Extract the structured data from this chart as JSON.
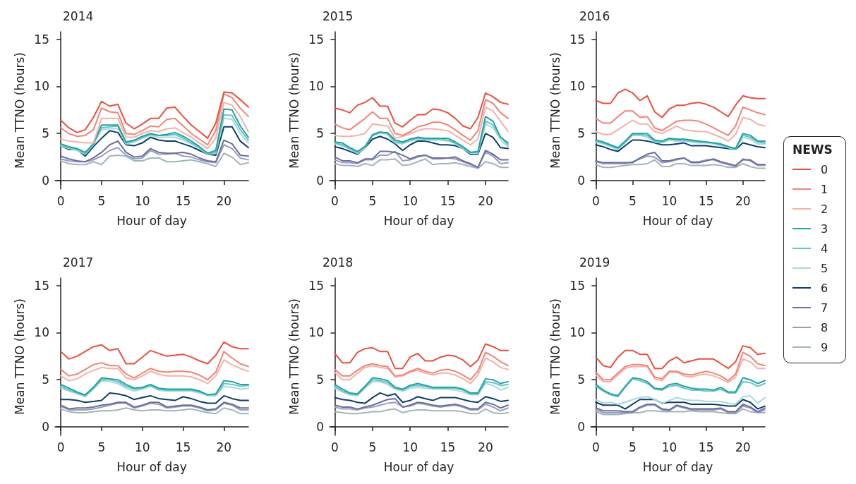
{
  "chart_data": [
    {
      "type": "line",
      "title": "2014",
      "xlabel": "Hour of day",
      "ylabel": "Mean TTNO (hours)",
      "x": [
        0,
        1,
        2,
        3,
        4,
        5,
        6,
        7,
        8,
        9,
        10,
        11,
        12,
        13,
        14,
        15,
        16,
        17,
        18,
        19,
        20,
        21,
        22,
        23
      ],
      "xlim": [
        -0.7,
        23
      ],
      "xticks": [
        0,
        5,
        10,
        15,
        20
      ],
      "ylim": [
        -0.9,
        15.8
      ],
      "yticks": [
        0,
        5,
        10,
        15
      ],
      "grid": false,
      "legend": false,
      "series": [
        {
          "color": "#e8503e",
          "values": [
            6.4,
            5.6,
            5.1,
            5.4,
            6.7,
            8.4,
            7.9,
            8.1,
            6.1,
            5.5,
            6.0,
            6.6,
            6.6,
            7.7,
            7.8,
            6.8,
            5.9,
            5.2,
            4.5,
            6.1,
            9.4,
            9.3,
            8.6,
            7.8
          ]
        },
        {
          "color": "#f08478",
          "values": [
            5.6,
            5.0,
            4.7,
            4.8,
            5.4,
            7.7,
            7.3,
            7.2,
            5.0,
            4.9,
            5.3,
            5.8,
            5.7,
            6.5,
            6.6,
            5.8,
            5.0,
            4.4,
            3.8,
            5.3,
            9.2,
            8.8,
            7.7,
            6.8
          ]
        },
        {
          "color": "#f5b0a8",
          "values": [
            4.4,
            4.2,
            4.1,
            4.0,
            4.0,
            6.6,
            6.6,
            6.6,
            4.6,
            4.6,
            5.0,
            5.3,
            5.2,
            5.5,
            5.6,
            5.1,
            4.6,
            4.0,
            3.4,
            4.5,
            8.3,
            8.0,
            6.8,
            5.2
          ]
        },
        {
          "color": "#1ea5a5",
          "values": [
            3.9,
            3.6,
            3.4,
            3.0,
            3.9,
            5.9,
            5.9,
            5.9,
            4.1,
            4.3,
            4.7,
            5.0,
            4.8,
            4.9,
            5.1,
            4.7,
            4.2,
            3.6,
            2.9,
            3.2,
            7.6,
            7.5,
            5.8,
            4.6
          ]
        },
        {
          "color": "#6cc3c6",
          "values": [
            3.8,
            3.5,
            3.3,
            2.9,
            3.9,
            5.6,
            5.7,
            5.8,
            4.0,
            4.2,
            4.6,
            4.9,
            4.8,
            4.8,
            4.9,
            4.5,
            4.0,
            3.5,
            2.9,
            3.0,
            7.0,
            6.9,
            5.4,
            4.3
          ]
        },
        {
          "color": "#a9d9da",
          "values": [
            3.7,
            3.4,
            3.2,
            2.8,
            3.8,
            5.4,
            5.5,
            5.5,
            3.9,
            4.1,
            4.5,
            4.8,
            4.6,
            4.6,
            4.6,
            4.3,
            3.9,
            3.4,
            2.8,
            2.9,
            6.6,
            6.5,
            5.0,
            4.0
          ]
        },
        {
          "color": "#0f3d6e",
          "values": [
            3.7,
            3.3,
            3.3,
            2.6,
            3.6,
            4.5,
            5.3,
            5.1,
            3.8,
            3.7,
            4.0,
            4.6,
            4.3,
            4.2,
            4.2,
            3.9,
            3.6,
            3.2,
            2.8,
            2.7,
            5.7,
            5.7,
            4.2,
            3.5
          ]
        },
        {
          "color": "#6a6f9e",
          "values": [
            2.6,
            2.3,
            2.1,
            2.0,
            2.4,
            3.0,
            3.8,
            4.2,
            3.0,
            2.5,
            2.6,
            3.4,
            3.0,
            2.9,
            2.9,
            3.0,
            2.8,
            2.4,
            2.1,
            2.0,
            4.3,
            3.9,
            2.7,
            2.6
          ]
        },
        {
          "color": "#9a9cc4",
          "values": [
            2.3,
            2.1,
            2.0,
            2.0,
            2.2,
            2.6,
            3.2,
            3.5,
            2.7,
            2.3,
            2.4,
            3.2,
            2.8,
            2.8,
            2.9,
            2.6,
            2.5,
            2.2,
            2.0,
            1.9,
            3.8,
            3.4,
            2.4,
            2.2
          ]
        },
        {
          "color": "#9fb6b8",
          "values": [
            2.1,
            1.8,
            1.7,
            1.7,
            2.0,
            1.7,
            2.6,
            2.7,
            2.6,
            2.1,
            2.1,
            2.4,
            2.4,
            2.0,
            2.0,
            2.1,
            2.2,
            2.0,
            1.8,
            1.5,
            2.9,
            2.5,
            1.7,
            1.9
          ]
        }
      ]
    },
    {
      "type": "line",
      "title": "2015",
      "xlabel": "Hour of day",
      "ylabel": "Mean TTNO (hours)",
      "x": [
        0,
        1,
        2,
        3,
        4,
        5,
        6,
        7,
        8,
        9,
        10,
        11,
        12,
        13,
        14,
        15,
        16,
        17,
        18,
        19,
        20,
        21,
        22,
        23
      ],
      "xlim": [
        -0.7,
        23
      ],
      "xticks": [
        0,
        5,
        10,
        15,
        20
      ],
      "ylim": [
        -0.9,
        15.8
      ],
      "yticks": [
        0,
        5,
        10,
        15
      ],
      "grid": false,
      "legend": false,
      "series": [
        {
          "color": "#e8503e",
          "values": [
            7.7,
            7.5,
            7.2,
            8.0,
            8.3,
            8.8,
            7.9,
            7.9,
            6.1,
            5.7,
            6.4,
            7.0,
            7.0,
            7.6,
            7.5,
            7.2,
            6.6,
            5.8,
            5.5,
            6.7,
            9.3,
            8.9,
            8.3,
            8.1
          ]
        },
        {
          "color": "#f08478",
          "values": [
            6.0,
            5.6,
            5.4,
            6.0,
            6.6,
            7.3,
            6.6,
            6.6,
            5.0,
            4.8,
            5.2,
            5.7,
            5.9,
            6.2,
            6.2,
            5.9,
            5.4,
            4.8,
            4.3,
            5.3,
            8.6,
            8.2,
            7.2,
            6.6
          ]
        },
        {
          "color": "#f5b0a8",
          "values": [
            4.8,
            4.7,
            4.7,
            4.8,
            5.0,
            6.0,
            5.9,
            5.8,
            4.5,
            4.7,
            5.0,
            5.3,
            5.5,
            5.5,
            5.4,
            5.3,
            4.8,
            4.3,
            3.8,
            4.4,
            7.8,
            7.4,
            6.3,
            5.2
          ]
        },
        {
          "color": "#1ea5a5",
          "values": [
            4.1,
            4.0,
            3.5,
            3.1,
            3.6,
            4.8,
            5.1,
            5.1,
            4.3,
            4.1,
            4.4,
            4.6,
            4.5,
            4.5,
            4.5,
            4.5,
            4.1,
            3.6,
            3.0,
            3.1,
            6.8,
            6.3,
            4.6,
            4.0
          ]
        },
        {
          "color": "#6cc3c6",
          "values": [
            4.0,
            3.8,
            3.4,
            3.0,
            3.6,
            4.9,
            5.2,
            5.0,
            4.1,
            4.0,
            4.3,
            4.5,
            4.4,
            4.4,
            4.4,
            4.3,
            4.0,
            3.5,
            3.0,
            3.0,
            6.3,
            5.9,
            4.6,
            3.8
          ]
        },
        {
          "color": "#a9d9da",
          "values": [
            3.9,
            3.7,
            3.3,
            2.9,
            3.5,
            4.8,
            5.1,
            4.9,
            4.0,
            3.9,
            4.2,
            4.4,
            4.3,
            4.3,
            4.3,
            4.2,
            3.9,
            3.4,
            2.9,
            2.9,
            6.0,
            5.6,
            4.3,
            3.6
          ]
        },
        {
          "color": "#0f3d6e",
          "values": [
            3.6,
            3.4,
            3.1,
            2.8,
            3.5,
            4.4,
            4.7,
            4.4,
            3.9,
            3.2,
            3.8,
            4.2,
            4.2,
            4.0,
            3.8,
            3.8,
            3.7,
            3.4,
            2.8,
            2.8,
            5.0,
            4.6,
            3.5,
            3.4
          ]
        },
        {
          "color": "#6a6f9e",
          "values": [
            2.5,
            2.1,
            2.1,
            1.9,
            2.3,
            2.3,
            3.1,
            3.1,
            3.0,
            2.7,
            2.3,
            2.6,
            2.7,
            2.4,
            2.4,
            2.4,
            2.5,
            2.1,
            1.8,
            1.4,
            3.2,
            2.8,
            2.2,
            2.2
          ]
        },
        {
          "color": "#9a9cc4",
          "values": [
            2.2,
            1.9,
            1.9,
            1.8,
            2.2,
            2.2,
            2.7,
            2.7,
            3.1,
            2.1,
            2.2,
            2.5,
            2.7,
            2.3,
            2.3,
            2.4,
            2.3,
            2.0,
            1.7,
            1.4,
            3.0,
            2.6,
            1.8,
            1.9
          ]
        },
        {
          "color": "#9fb6b8",
          "values": [
            1.8,
            1.6,
            1.6,
            1.5,
            1.8,
            1.6,
            2.2,
            2.2,
            2.3,
            1.6,
            1.7,
            2.0,
            2.3,
            1.7,
            1.8,
            1.8,
            1.9,
            1.7,
            1.5,
            1.3,
            2.0,
            1.8,
            1.4,
            1.4
          ]
        }
      ]
    },
    {
      "type": "line",
      "title": "2016",
      "xlabel": "Hour of day",
      "ylabel": "Mean TTNO (hours)",
      "x": [
        0,
        1,
        2,
        3,
        4,
        5,
        6,
        7,
        8,
        9,
        10,
        11,
        12,
        13,
        14,
        15,
        16,
        17,
        18,
        19,
        20,
        21,
        22,
        23
      ],
      "xlim": [
        -0.7,
        23
      ],
      "xticks": [
        0,
        5,
        10,
        15,
        20
      ],
      "ylim": [
        -0.9,
        15.8
      ],
      "yticks": [
        0,
        5,
        10,
        15
      ],
      "grid": false,
      "legend": "right",
      "legend_title": "NEWS",
      "series": [
        {
          "name": "0",
          "color": "#e8503e",
          "values": [
            8.5,
            8.2,
            8.2,
            9.3,
            9.7,
            9.3,
            8.5,
            9.0,
            7.3,
            6.7,
            7.6,
            8.0,
            8.0,
            8.2,
            8.3,
            8.1,
            7.8,
            7.3,
            6.8,
            8.0,
            9.0,
            8.8,
            8.7,
            8.7
          ]
        },
        {
          "name": "1",
          "color": "#f08478",
          "values": [
            6.6,
            6.1,
            6.1,
            6.8,
            7.4,
            7.4,
            6.7,
            6.8,
            5.6,
            5.3,
            5.8,
            6.3,
            6.4,
            6.4,
            6.3,
            6.0,
            5.6,
            5.2,
            4.8,
            5.8,
            7.8,
            7.5,
            7.2,
            7.0
          ]
        },
        {
          "name": "2",
          "color": "#f5b0a8",
          "values": [
            5.2,
            4.9,
            4.9,
            5.4,
            5.9,
            6.4,
            6.0,
            6.0,
            5.2,
            5.0,
            5.4,
            5.8,
            5.4,
            5.3,
            5.2,
            5.2,
            4.9,
            4.6,
            4.2,
            4.9,
            6.7,
            6.5,
            6.0,
            5.8
          ]
        },
        {
          "name": "3",
          "color": "#1ea5a5",
          "values": [
            4.3,
            4.1,
            3.8,
            3.5,
            4.2,
            5.0,
            5.0,
            5.0,
            4.3,
            4.2,
            4.5,
            4.4,
            4.4,
            4.3,
            4.2,
            4.1,
            4.0,
            3.9,
            3.6,
            3.4,
            5.0,
            4.8,
            4.2,
            4.2
          ]
        },
        {
          "name": "4",
          "color": "#6cc3c6",
          "values": [
            4.2,
            4.0,
            3.7,
            3.4,
            4.1,
            4.9,
            4.9,
            4.8,
            4.2,
            4.1,
            4.4,
            4.3,
            4.3,
            4.2,
            4.1,
            4.1,
            4.0,
            3.8,
            3.6,
            3.4,
            4.8,
            4.6,
            4.1,
            4.0
          ]
        },
        {
          "name": "5",
          "color": "#a9d9da",
          "values": [
            4.1,
            3.9,
            3.6,
            3.3,
            4.0,
            4.8,
            4.8,
            4.6,
            4.1,
            4.0,
            4.3,
            4.2,
            4.2,
            4.1,
            4.0,
            4.0,
            3.9,
            3.7,
            3.5,
            3.3,
            4.6,
            4.4,
            3.9,
            3.9
          ]
        },
        {
          "name": "6",
          "color": "#0f3d6e",
          "values": [
            3.8,
            3.6,
            3.3,
            3.1,
            3.7,
            4.3,
            4.3,
            4.2,
            4.0,
            3.8,
            3.8,
            3.9,
            4.0,
            3.7,
            3.7,
            3.7,
            3.6,
            3.5,
            3.4,
            3.3,
            4.0,
            3.8,
            3.6,
            3.5
          ]
        },
        {
          "name": "7",
          "color": "#6a6f9e",
          "values": [
            2.1,
            1.9,
            1.9,
            1.9,
            1.9,
            1.9,
            2.4,
            2.8,
            3.0,
            2.1,
            2.1,
            2.3,
            2.4,
            1.9,
            1.9,
            2.1,
            2.3,
            2.0,
            1.8,
            1.6,
            2.2,
            2.2,
            1.7,
            1.7
          ]
        },
        {
          "name": "8",
          "color": "#9a9cc4",
          "values": [
            2.0,
            1.8,
            1.8,
            1.8,
            1.8,
            2.0,
            2.3,
            2.6,
            2.5,
            1.9,
            2.0,
            2.2,
            2.4,
            2.0,
            2.0,
            2.2,
            2.2,
            1.9,
            1.7,
            1.5,
            2.3,
            2.1,
            1.6,
            1.6
          ]
        },
        {
          "name": "9",
          "color": "#9fb6b8",
          "values": [
            1.7,
            1.4,
            1.4,
            1.5,
            1.6,
            1.7,
            1.7,
            1.8,
            2.2,
            1.5,
            1.5,
            1.8,
            1.8,
            1.6,
            1.6,
            1.6,
            1.7,
            1.6,
            1.4,
            1.4,
            1.8,
            1.5,
            1.3,
            1.3
          ]
        }
      ]
    },
    {
      "type": "line",
      "title": "2017",
      "xlabel": "Hour of day",
      "ylabel": "Mean TTNO (hours)",
      "x": [
        0,
        1,
        2,
        3,
        4,
        5,
        6,
        7,
        8,
        9,
        10,
        11,
        12,
        13,
        14,
        15,
        16,
        17,
        18,
        19,
        20,
        21,
        22,
        23
      ],
      "xlim": [
        -0.7,
        23
      ],
      "xticks": [
        0,
        5,
        10,
        15,
        20
      ],
      "ylim": [
        -0.9,
        15.8
      ],
      "yticks": [
        0,
        5,
        10,
        15
      ],
      "grid": false,
      "legend": false,
      "series": [
        {
          "color": "#e8503e",
          "values": [
            8.0,
            7.2,
            7.5,
            8.0,
            8.5,
            8.7,
            8.1,
            8.3,
            6.7,
            6.7,
            7.4,
            8.1,
            7.8,
            7.5,
            7.6,
            7.7,
            7.4,
            7.0,
            6.7,
            7.6,
            9.0,
            8.5,
            8.3,
            8.3
          ]
        },
        {
          "color": "#f08478",
          "values": [
            6.1,
            5.4,
            5.6,
            6.1,
            6.6,
            6.8,
            6.5,
            6.5,
            5.6,
            5.2,
            5.7,
            6.2,
            5.9,
            5.8,
            5.9,
            5.9,
            5.8,
            5.5,
            5.0,
            5.8,
            8.0,
            7.3,
            6.7,
            6.4
          ]
        },
        {
          "color": "#f5b0a8",
          "values": [
            5.4,
            4.9,
            5.1,
            5.6,
            6.0,
            6.3,
            6.2,
            6.2,
            5.2,
            5.0,
            5.4,
            5.9,
            5.6,
            5.4,
            5.4,
            5.4,
            5.3,
            5.0,
            4.6,
            5.4,
            7.1,
            6.6,
            6.2,
            5.9
          ]
        },
        {
          "color": "#1ea5a5",
          "values": [
            4.5,
            4.1,
            3.7,
            3.4,
            4.2,
            5.2,
            5.1,
            5.0,
            4.5,
            4.1,
            4.2,
            4.5,
            4.1,
            4.0,
            4.0,
            4.0,
            4.0,
            3.8,
            3.4,
            3.5,
            4.9,
            4.8,
            4.5,
            4.5
          ]
        },
        {
          "color": "#6cc3c6",
          "values": [
            4.3,
            3.9,
            3.6,
            3.3,
            4.1,
            5.0,
            5.0,
            4.8,
            4.3,
            4.0,
            4.1,
            4.4,
            4.0,
            3.9,
            3.9,
            3.9,
            3.9,
            3.7,
            3.4,
            3.4,
            4.6,
            4.5,
            4.3,
            4.4
          ]
        },
        {
          "color": "#a9d9da",
          "values": [
            4.1,
            3.8,
            3.5,
            3.2,
            4.0,
            4.9,
            4.8,
            4.6,
            4.1,
            3.8,
            4.0,
            4.3,
            3.9,
            3.8,
            3.8,
            3.8,
            3.8,
            3.6,
            3.3,
            3.3,
            4.3,
            4.2,
            4.0,
            4.1
          ]
        },
        {
          "color": "#0f3d6e",
          "values": [
            2.9,
            2.9,
            2.8,
            2.6,
            2.7,
            2.8,
            3.6,
            3.5,
            3.3,
            2.9,
            3.1,
            3.3,
            3.0,
            2.9,
            2.8,
            3.2,
            3.0,
            2.7,
            2.5,
            2.5,
            3.3,
            3.0,
            2.8,
            2.8
          ]
        },
        {
          "color": "#6a6f9e",
          "values": [
            2.3,
            1.9,
            2.0,
            2.0,
            2.1,
            2.3,
            2.4,
            2.6,
            2.6,
            2.1,
            2.3,
            2.6,
            2.6,
            2.1,
            2.2,
            2.3,
            2.3,
            2.1,
            1.8,
            1.9,
            2.6,
            2.4,
            2.0,
            2.0
          ]
        },
        {
          "color": "#9a9cc4",
          "values": [
            2.2,
            1.8,
            1.8,
            1.8,
            1.9,
            2.1,
            2.3,
            2.5,
            2.5,
            2.0,
            2.2,
            2.5,
            2.4,
            2.0,
            2.1,
            2.2,
            2.2,
            2.0,
            1.7,
            1.8,
            2.5,
            2.3,
            1.8,
            1.8
          ]
        },
        {
          "color": "#9fb6b8",
          "values": [
            1.9,
            1.6,
            1.5,
            1.5,
            1.6,
            1.7,
            1.7,
            1.8,
            2.0,
            1.8,
            1.7,
            1.8,
            1.8,
            1.7,
            1.7,
            1.8,
            1.9,
            1.7,
            1.5,
            1.4,
            2.0,
            1.8,
            1.4,
            1.4
          ]
        }
      ]
    },
    {
      "type": "line",
      "title": "2018",
      "xlabel": "Hour of day",
      "ylabel": "Mean TTNO (hours)",
      "x": [
        0,
        1,
        2,
        3,
        4,
        5,
        6,
        7,
        8,
        9,
        10,
        11,
        12,
        13,
        14,
        15,
        16,
        17,
        18,
        19,
        20,
        21,
        22,
        23
      ],
      "xlim": [
        -0.7,
        23
      ],
      "xticks": [
        0,
        5,
        10,
        15,
        20
      ],
      "ylim": [
        -0.9,
        15.8
      ],
      "yticks": [
        0,
        5,
        10,
        15
      ],
      "grid": false,
      "legend": false,
      "series": [
        {
          "color": "#e8503e",
          "values": [
            7.8,
            6.8,
            6.8,
            7.9,
            8.3,
            8.4,
            8.0,
            8.0,
            6.2,
            6.2,
            7.4,
            7.8,
            7.0,
            7.0,
            7.4,
            7.6,
            7.5,
            7.1,
            6.4,
            7.1,
            8.8,
            8.5,
            8.1,
            8.1
          ]
        },
        {
          "color": "#f08478",
          "values": [
            6.1,
            5.4,
            5.4,
            6.0,
            6.5,
            6.7,
            6.5,
            6.4,
            5.4,
            5.5,
            5.9,
            6.2,
            5.9,
            5.7,
            6.0,
            6.1,
            5.9,
            5.5,
            5.0,
            5.9,
            7.9,
            7.5,
            6.9,
            6.5
          ]
        },
        {
          "color": "#f5b0a8",
          "values": [
            5.8,
            5.0,
            5.0,
            5.7,
            6.3,
            6.5,
            6.3,
            6.2,
            5.3,
            5.4,
            5.8,
            6.0,
            5.7,
            5.5,
            5.7,
            5.7,
            5.5,
            5.1,
            4.6,
            5.5,
            7.3,
            6.9,
            6.3,
            6.1
          ]
        },
        {
          "color": "#1ea5a5",
          "values": [
            4.5,
            4.0,
            3.6,
            3.5,
            4.3,
            5.2,
            5.1,
            4.9,
            4.2,
            4.0,
            4.4,
            4.6,
            4.4,
            4.2,
            4.2,
            4.2,
            4.2,
            4.0,
            3.6,
            3.6,
            5.1,
            5.0,
            4.6,
            4.8
          ]
        },
        {
          "color": "#6cc3c6",
          "values": [
            4.3,
            3.8,
            3.5,
            3.4,
            4.2,
            5.0,
            4.9,
            4.7,
            4.1,
            3.9,
            4.3,
            4.4,
            4.3,
            4.1,
            4.1,
            4.1,
            4.1,
            3.9,
            3.5,
            3.5,
            4.8,
            4.7,
            4.4,
            4.5
          ]
        },
        {
          "color": "#a9d9da",
          "values": [
            4.1,
            3.7,
            3.4,
            3.3,
            4.1,
            4.8,
            4.8,
            4.5,
            4.0,
            3.8,
            4.1,
            4.2,
            4.1,
            4.0,
            4.0,
            4.0,
            3.9,
            3.7,
            3.4,
            3.4,
            4.6,
            4.4,
            3.9,
            4.2
          ]
        },
        {
          "color": "#0f3d6e",
          "values": [
            3.1,
            2.9,
            2.8,
            2.6,
            2.5,
            3.1,
            3.6,
            3.3,
            3.5,
            2.6,
            2.8,
            3.2,
            3.0,
            2.8,
            3.1,
            3.1,
            3.1,
            2.9,
            2.7,
            2.6,
            3.2,
            3.0,
            2.7,
            2.8
          ]
        },
        {
          "color": "#6a6f9e",
          "values": [
            2.3,
            2.1,
            2.1,
            1.9,
            2.1,
            2.3,
            2.6,
            2.9,
            3.0,
            2.1,
            2.3,
            2.6,
            2.5,
            2.3,
            2.2,
            2.3,
            2.4,
            2.2,
            1.9,
            1.9,
            2.6,
            2.4,
            2.0,
            2.3
          ]
        },
        {
          "color": "#9a9cc4",
          "values": [
            2.1,
            1.9,
            1.9,
            1.8,
            2.0,
            2.1,
            2.3,
            2.5,
            2.6,
            2.1,
            2.2,
            2.5,
            2.4,
            2.2,
            2.1,
            2.2,
            2.3,
            2.1,
            1.8,
            1.8,
            2.4,
            2.1,
            1.7,
            2.0
          ]
        },
        {
          "color": "#9fb6b8",
          "values": [
            1.6,
            1.5,
            1.4,
            1.4,
            1.5,
            1.6,
            1.6,
            1.8,
            1.9,
            1.5,
            1.7,
            1.8,
            1.8,
            1.7,
            1.7,
            1.7,
            1.7,
            1.6,
            1.4,
            1.4,
            1.9,
            1.5,
            1.4,
            1.5
          ]
        }
      ]
    },
    {
      "type": "line",
      "title": "2019",
      "xlabel": "Hour of day",
      "ylabel": "Mean TTNO (hours)",
      "x": [
        0,
        1,
        2,
        3,
        4,
        5,
        6,
        7,
        8,
        9,
        10,
        11,
        12,
        13,
        14,
        15,
        16,
        17,
        18,
        19,
        20,
        21,
        22,
        23
      ],
      "xlim": [
        -0.7,
        23
      ],
      "xticks": [
        0,
        5,
        10,
        15,
        20
      ],
      "ylim": [
        -0.9,
        15.8
      ],
      "yticks": [
        0,
        5,
        10,
        15
      ],
      "grid": false,
      "legend": false,
      "series": [
        {
          "color": "#e8503e",
          "values": [
            7.4,
            6.5,
            6.3,
            7.4,
            8.1,
            8.1,
            7.7,
            7.7,
            6.2,
            6.2,
            7.0,
            7.4,
            6.8,
            7.0,
            7.2,
            7.2,
            7.2,
            6.7,
            6.2,
            6.9,
            8.6,
            8.4,
            7.7,
            7.8
          ]
        },
        {
          "color": "#f08478",
          "values": [
            5.8,
            5.0,
            5.0,
            5.7,
            6.4,
            6.6,
            6.6,
            6.5,
            5.3,
            5.1,
            5.9,
            5.9,
            5.6,
            5.5,
            5.7,
            5.9,
            5.7,
            5.4,
            4.9,
            5.6,
            7.9,
            7.5,
            6.7,
            6.5
          ]
        },
        {
          "color": "#f5b0a8",
          "values": [
            5.5,
            4.8,
            4.8,
            5.5,
            6.2,
            6.4,
            6.4,
            6.4,
            5.1,
            4.9,
            5.8,
            5.8,
            5.4,
            5.3,
            5.5,
            5.6,
            5.4,
            5.1,
            4.7,
            5.3,
            7.2,
            6.9,
            6.2,
            6.2
          ]
        },
        {
          "color": "#1ea5a5",
          "values": [
            4.5,
            3.9,
            3.5,
            3.3,
            4.3,
            5.2,
            5.1,
            4.8,
            4.1,
            4.0,
            4.5,
            4.6,
            4.3,
            4.1,
            4.0,
            4.0,
            3.9,
            4.2,
            3.7,
            3.7,
            5.2,
            5.0,
            4.6,
            4.9
          ]
        },
        {
          "color": "#6cc3c6",
          "values": [
            4.3,
            3.8,
            3.4,
            3.2,
            4.2,
            5.1,
            4.9,
            4.6,
            4.0,
            3.9,
            4.3,
            4.4,
            4.1,
            3.9,
            3.9,
            3.8,
            3.8,
            4.0,
            3.6,
            3.6,
            4.8,
            4.7,
            4.3,
            4.6
          ]
        },
        {
          "color": "#a9d9da",
          "values": [
            2.9,
            2.5,
            2.6,
            2.4,
            2.6,
            2.9,
            3.1,
            3.2,
            2.9,
            2.5,
            2.8,
            3.1,
            2.9,
            2.8,
            2.8,
            2.7,
            2.7,
            2.7,
            2.5,
            2.4,
            3.2,
            3.3,
            2.5,
            3.1
          ]
        },
        {
          "color": "#0f3d6e",
          "values": [
            2.6,
            2.3,
            2.3,
            2.3,
            1.9,
            2.4,
            2.9,
            2.9,
            2.9,
            2.5,
            2.6,
            2.6,
            2.6,
            2.4,
            2.4,
            2.4,
            2.4,
            2.3,
            2.2,
            2.2,
            2.9,
            2.6,
            1.9,
            2.2
          ]
        },
        {
          "color": "#6a6f9e",
          "values": [
            2.0,
            1.7,
            1.7,
            1.7,
            1.6,
            1.6,
            2.1,
            2.4,
            2.4,
            1.9,
            1.8,
            2.3,
            2.1,
            1.9,
            1.9,
            1.9,
            1.9,
            2.0,
            1.6,
            1.6,
            2.4,
            2.1,
            1.6,
            2.0
          ]
        },
        {
          "color": "#9a9cc4",
          "values": [
            1.8,
            1.5,
            1.5,
            1.5,
            1.5,
            1.5,
            2.0,
            2.3,
            2.3,
            1.8,
            1.7,
            2.2,
            2.0,
            1.8,
            1.8,
            1.8,
            1.8,
            1.9,
            1.5,
            1.5,
            2.2,
            2.0,
            1.5,
            1.8
          ]
        },
        {
          "color": "#9fb6b8",
          "values": [
            1.6,
            1.3,
            1.3,
            1.3,
            1.4,
            1.5,
            1.5,
            1.7,
            1.7,
            1.6,
            1.6,
            1.6,
            1.6,
            1.7,
            1.6,
            1.6,
            1.6,
            1.5,
            1.4,
            1.4,
            1.9,
            1.6,
            1.5,
            1.5
          ]
        }
      ]
    }
  ]
}
